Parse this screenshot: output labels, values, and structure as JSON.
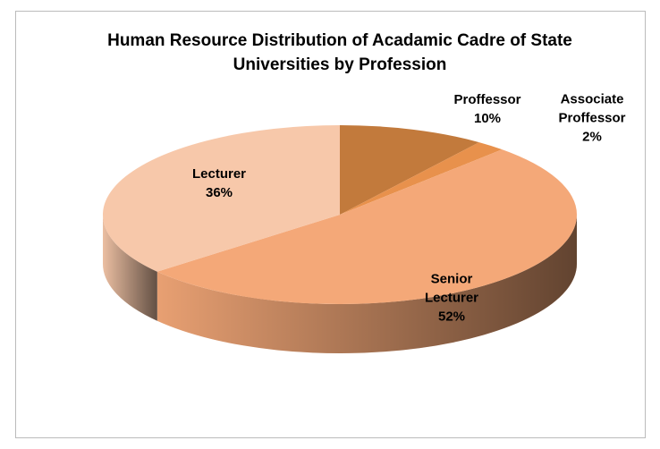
{
  "chart_data": {
    "type": "pie3d",
    "title": "Human Resource Distribution of  Acadamic Cadre of State Universities by Profession",
    "categories": [
      "Proffessor",
      "Associate Proffessor",
      "Senior Lecturer",
      "Lecturer"
    ],
    "values": [
      10,
      2,
      52,
      36
    ],
    "value_labels": [
      "10%",
      "2%",
      "52%",
      "36%"
    ],
    "colors": [
      "#c27a3c",
      "#e8914c",
      "#f4a878",
      "#f7c8aa"
    ]
  }
}
